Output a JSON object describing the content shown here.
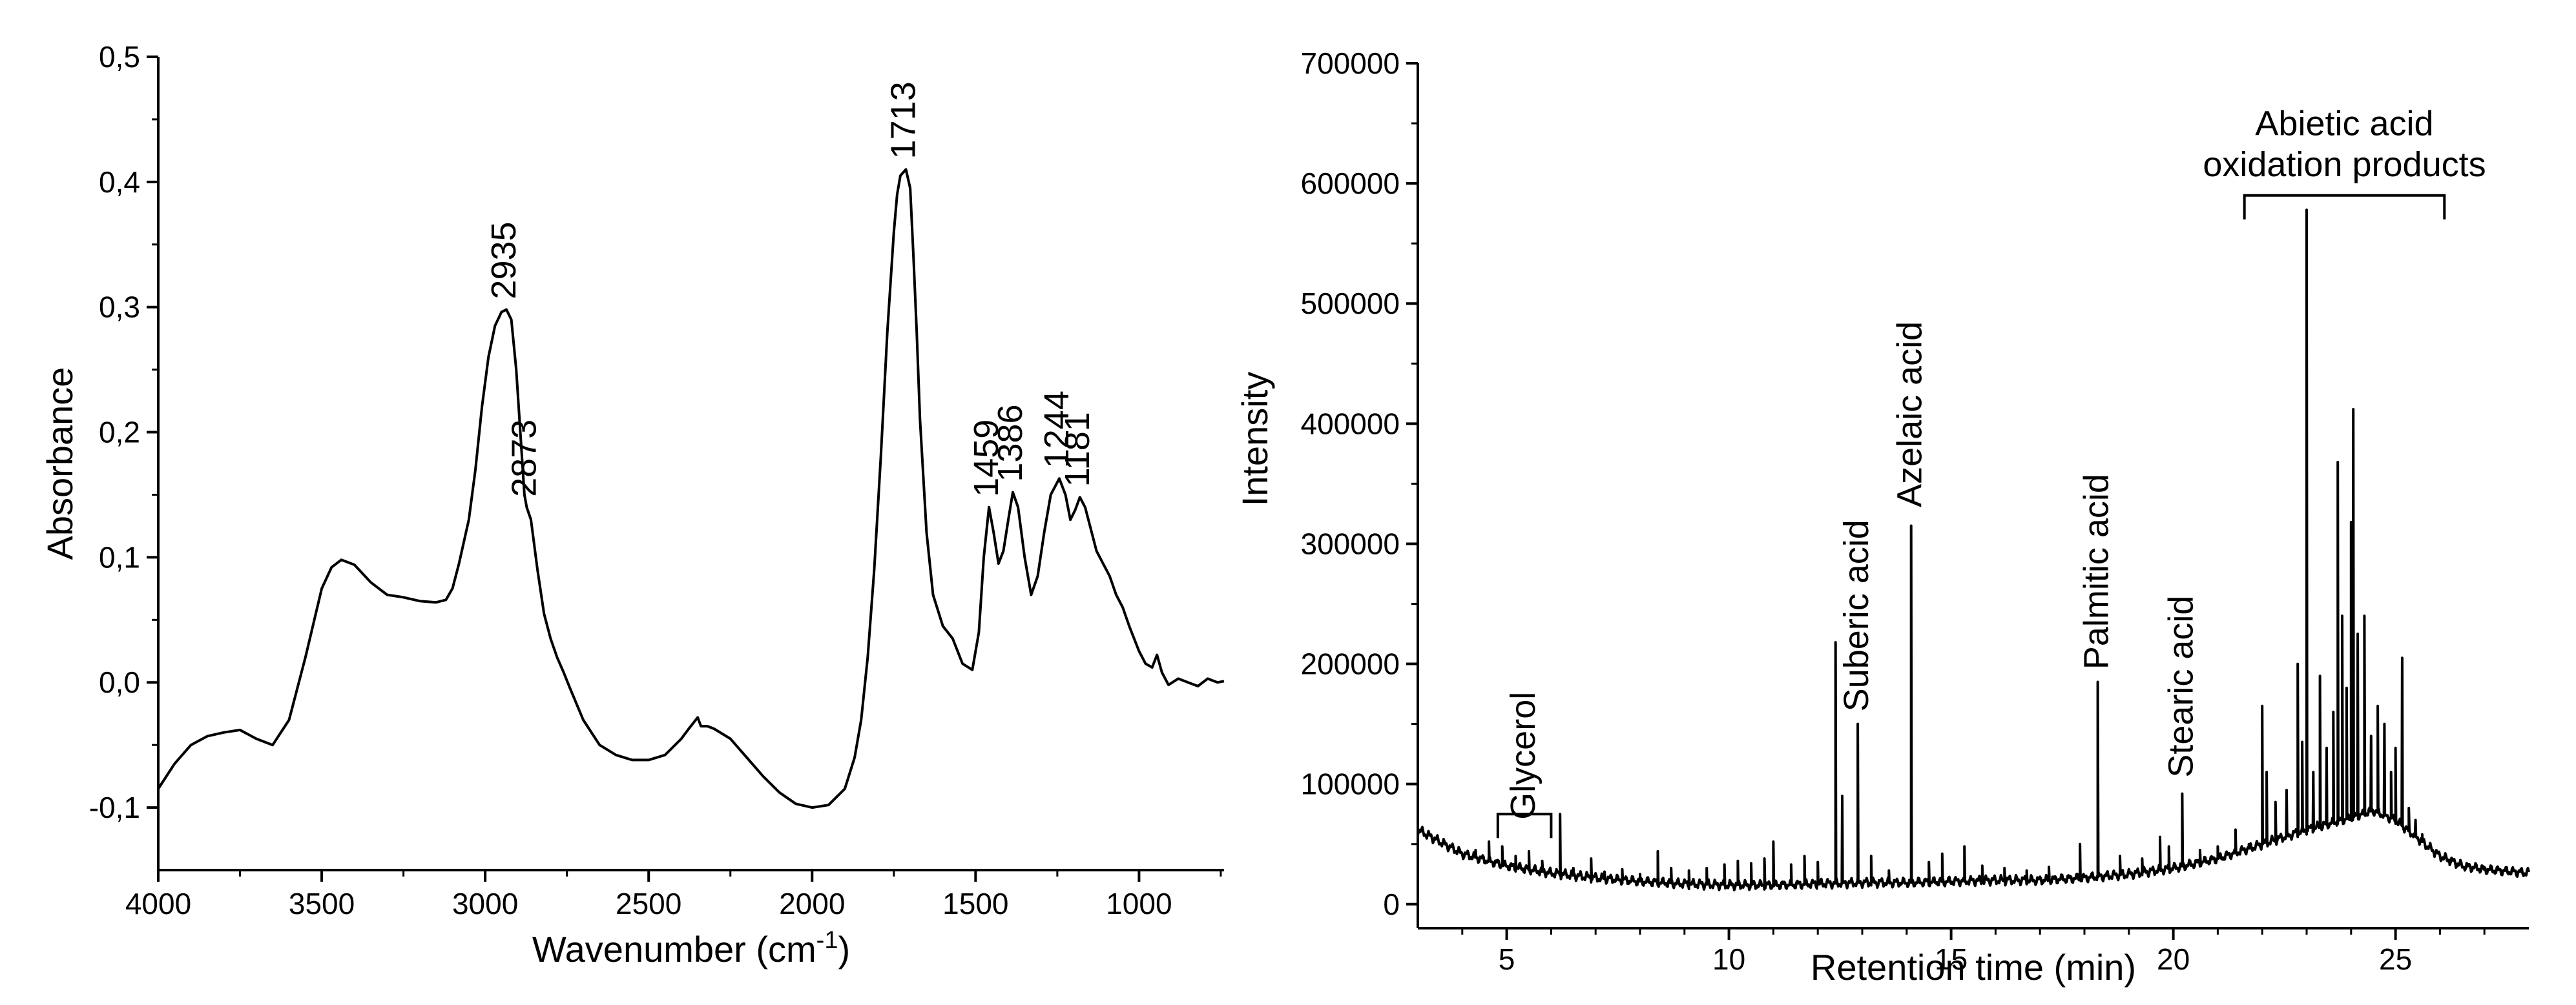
{
  "chart_data": [
    {
      "type": "line",
      "xlabel": "Wavenumber (cm",
      "xlabel_sup": "-1",
      "xlabel_suffix": ")",
      "ylabel": "Absorbance",
      "xlim": [
        4000,
        740
      ],
      "ylim": [
        -0.15,
        0.5
      ],
      "x_reversed": true,
      "x_ticks": [
        4000,
        3500,
        3000,
        2500,
        2000,
        1500,
        1000
      ],
      "x_tick_labels": [
        "4000",
        "3500",
        "3000",
        "2500",
        "2000",
        "1500",
        "1000"
      ],
      "y_ticks": [
        -0.1,
        0.0,
        0.1,
        0.2,
        0.3,
        0.4,
        0.5
      ],
      "y_tick_labels": [
        "-0,1",
        "0,0",
        "0,1",
        "0,2",
        "0,3",
        "0,4",
        "0,5"
      ],
      "annotations": [
        {
          "text": "2935",
          "x": 2935,
          "y": 0.298
        },
        {
          "text": "2873",
          "x": 2873,
          "y": 0.14
        },
        {
          "text": "1713",
          "x": 1713,
          "y": 0.41
        },
        {
          "text": "1459",
          "x": 1459,
          "y": 0.14
        },
        {
          "text": "1386",
          "x": 1386,
          "y": 0.152
        },
        {
          "text": "1244",
          "x": 1244,
          "y": 0.163
        },
        {
          "text": "1181",
          "x": 1181,
          "y": 0.148
        }
      ],
      "series": [
        {
          "x": [
            4000,
            3950,
            3900,
            3850,
            3800,
            3750,
            3700,
            3650,
            3600,
            3550,
            3500,
            3470,
            3440,
            3400,
            3350,
            3300,
            3250,
            3200,
            3150,
            3120,
            3100,
            3080,
            3050,
            3030,
            3010,
            2990,
            2970,
            2950,
            2935,
            2920,
            2905,
            2890,
            2880,
            2873,
            2860,
            2840,
            2820,
            2800,
            2780,
            2760,
            2740,
            2700,
            2650,
            2600,
            2550,
            2500,
            2450,
            2400,
            2380,
            2350,
            2340,
            2320,
            2300,
            2250,
            2200,
            2150,
            2100,
            2050,
            2000,
            1950,
            1900,
            1870,
            1850,
            1830,
            1810,
            1790,
            1770,
            1750,
            1740,
            1730,
            1713,
            1700,
            1690,
            1680,
            1670,
            1650,
            1630,
            1600,
            1570,
            1540,
            1510,
            1490,
            1475,
            1459,
            1445,
            1430,
            1415,
            1400,
            1386,
            1370,
            1350,
            1330,
            1310,
            1290,
            1270,
            1244,
            1225,
            1210,
            1195,
            1181,
            1165,
            1150,
            1130,
            1110,
            1090,
            1070,
            1050,
            1030,
            1000,
            980,
            960,
            945,
            930,
            910,
            880,
            850,
            820,
            790,
            760,
            740
          ],
          "y": [
            -0.085,
            -0.065,
            -0.05,
            -0.043,
            -0.04,
            -0.038,
            -0.045,
            -0.05,
            -0.03,
            0.02,
            0.075,
            0.092,
            0.098,
            0.094,
            0.08,
            0.07,
            0.068,
            0.065,
            0.064,
            0.066,
            0.075,
            0.095,
            0.13,
            0.17,
            0.22,
            0.26,
            0.285,
            0.296,
            0.298,
            0.29,
            0.25,
            0.19,
            0.15,
            0.14,
            0.13,
            0.09,
            0.055,
            0.035,
            0.02,
            0.008,
            -0.005,
            -0.03,
            -0.05,
            -0.058,
            -0.062,
            -0.062,
            -0.058,
            -0.045,
            -0.038,
            -0.028,
            -0.035,
            -0.035,
            -0.037,
            -0.045,
            -0.06,
            -0.075,
            -0.088,
            -0.097,
            -0.1,
            -0.098,
            -0.085,
            -0.06,
            -0.03,
            0.02,
            0.09,
            0.18,
            0.28,
            0.36,
            0.39,
            0.405,
            0.41,
            0.395,
            0.34,
            0.28,
            0.21,
            0.12,
            0.07,
            0.045,
            0.035,
            0.015,
            0.01,
            0.04,
            0.1,
            0.14,
            0.12,
            0.095,
            0.105,
            0.13,
            0.152,
            0.14,
            0.1,
            0.07,
            0.085,
            0.12,
            0.15,
            0.163,
            0.15,
            0.13,
            0.138,
            0.148,
            0.14,
            0.125,
            0.105,
            0.095,
            0.085,
            0.07,
            0.06,
            0.045,
            0.025,
            0.015,
            0.012,
            0.022,
            0.008,
            -0.002,
            0.003,
            0.0,
            -0.003,
            0.003,
            0.0,
            0.001
          ]
        }
      ]
    },
    {
      "type": "line",
      "xlabel": "Retention time (min)",
      "ylabel": "Intensity",
      "xlim": [
        3,
        28
      ],
      "ylim": [
        -20000,
        700000
      ],
      "x_ticks": [
        5,
        10,
        15,
        20,
        25
      ],
      "x_tick_labels": [
        "5",
        "10",
        "15",
        "20",
        "25"
      ],
      "y_ticks": [
        0,
        100000,
        200000,
        300000,
        400000,
        500000,
        600000,
        700000
      ],
      "y_tick_labels": [
        "0",
        "100000",
        "200000",
        "300000",
        "400000",
        "500000",
        "600000",
        "700000"
      ],
      "annotations": [
        {
          "text": "Glycerol",
          "x": 5.4,
          "y": 65000
        },
        {
          "text": "Suberic acid",
          "x": 12.9,
          "y": 155000
        },
        {
          "text": "Azelaic acid",
          "x": 14.1,
          "y": 325000
        },
        {
          "text": "Palmitic acid",
          "x": 18.3,
          "y": 190000
        },
        {
          "text": "Stearic acid",
          "x": 20.2,
          "y": 100000
        }
      ],
      "bracket_label_lines": [
        "Abietic acid",
        "oxidation products"
      ],
      "bracket_range": [
        21.6,
        26.1
      ],
      "series": [
        {
          "baseline_x": [
            3,
            4,
            5,
            6,
            7,
            8,
            9,
            10,
            11,
            12,
            13,
            14,
            15,
            16,
            17,
            18,
            19,
            20,
            21,
            22,
            23,
            24,
            24.5,
            25,
            25.5,
            26,
            26.5,
            27,
            28
          ],
          "baseline_y": [
            62000,
            42000,
            32000,
            26000,
            22000,
            19000,
            17000,
            16000,
            16000,
            17000,
            18000,
            18000,
            19000,
            20000,
            20000,
            22000,
            25000,
            30000,
            38000,
            50000,
            62000,
            72000,
            78000,
            70000,
            55000,
            40000,
            32000,
            29000,
            26000
          ],
          "peaks_x": [
            4.3,
            4.6,
            4.9,
            5.2,
            5.5,
            5.8,
            6.2,
            6.5,
            6.9,
            7.2,
            7.6,
            8.0,
            8.4,
            8.7,
            9.1,
            9.5,
            9.9,
            10.2,
            10.5,
            10.8,
            11.0,
            11.4,
            11.7,
            12.0,
            12.4,
            12.55,
            12.9,
            13.2,
            13.6,
            14.1,
            14.5,
            14.8,
            15.3,
            15.7,
            16.2,
            16.7,
            17.2,
            17.9,
            18.3,
            18.8,
            19.3,
            19.7,
            19.9,
            20.2,
            20.6,
            21.0,
            21.4,
            21.7,
            22.0,
            22.1,
            22.3,
            22.55,
            22.8,
            22.9,
            23.0,
            23.15,
            23.3,
            23.45,
            23.6,
            23.7,
            23.8,
            23.9,
            24.0,
            24.05,
            24.15,
            24.3,
            24.45,
            24.6,
            24.75,
            24.9,
            25.0,
            25.15,
            25.3,
            25.45,
            25.6,
            25.75,
            25.9,
            26.2,
            26.6,
            27.0
          ],
          "peaks_y": [
            45000,
            52000,
            48000,
            40000,
            44000,
            36000,
            75000,
            30000,
            38000,
            27000,
            29000,
            25000,
            44000,
            30000,
            28000,
            30000,
            33000,
            36000,
            34000,
            38000,
            52000,
            33000,
            40000,
            35000,
            218000,
            90000,
            150000,
            40000,
            28000,
            315000,
            35000,
            42000,
            48000,
            32000,
            30000,
            28000,
            31000,
            50000,
            185000,
            40000,
            38000,
            56000,
            48000,
            92000,
            45000,
            48000,
            62000,
            50000,
            165000,
            110000,
            85000,
            95000,
            200000,
            135000,
            578000,
            110000,
            190000,
            130000,
            160000,
            368000,
            240000,
            180000,
            318000,
            412000,
            225000,
            240000,
            140000,
            165000,
            150000,
            110000,
            130000,
            205000,
            80000,
            70000,
            58000,
            48000,
            42000,
            35000,
            32000,
            30000
          ]
        }
      ]
    }
  ]
}
